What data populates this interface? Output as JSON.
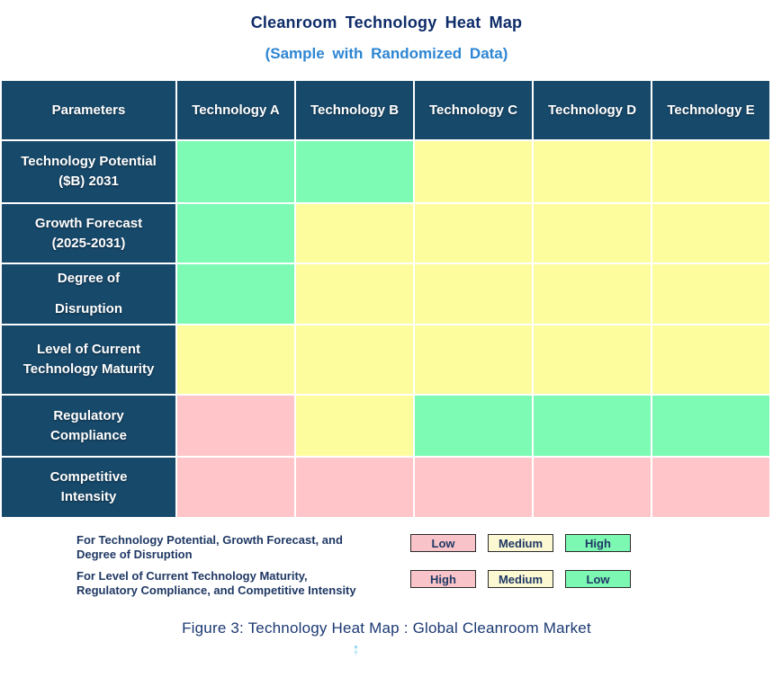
{
  "title": "Cleanroom Technology Heat Map",
  "subtitle": "(Sample with Randomized Data)",
  "caption": "Figure 3: Technology Heat Map : Global Cleanroom Market",
  "colors": {
    "header_bg": "#17496B",
    "header_text": "#FFFFFF",
    "cell_green": "#7DFBB5",
    "cell_yellow": "#FEFD9E",
    "cell_pink": "#FFC5C9",
    "legend_green": "#7DF8B3",
    "legend_yellow": "#FBF8D2",
    "legend_pink": "#F9C4C9",
    "title_text": "#0E2C69",
    "subtitle_text": "#2E86D3",
    "legend_text": "#1F3864",
    "caption_text": "#1C3973",
    "grid_line": "#FFFFFF"
  },
  "chart_data": {
    "type": "heatmap",
    "title": "Cleanroom Technology Heat Map",
    "subtitle": "(Sample with Randomized Data)",
    "corner_label": "Parameters",
    "columns": [
      "Technology A",
      "Technology B",
      "Technology C",
      "Technology D",
      "Technology E"
    ],
    "rows": [
      {
        "parameter": "Technology Potential ($B) 2031",
        "label_lines": [
          "Technology Potential",
          "($B) 2031"
        ],
        "cell_colors": [
          "green",
          "green",
          "yellow",
          "yellow",
          "yellow"
        ],
        "levels": [
          "High",
          "High",
          "Medium",
          "Medium",
          "Medium"
        ]
      },
      {
        "parameter": "Growth Forecast (2025-2031)",
        "label_lines": [
          "Growth Forecast",
          "(2025-2031)"
        ],
        "cell_colors": [
          "green",
          "yellow",
          "yellow",
          "yellow",
          "yellow"
        ],
        "levels": [
          "High",
          "Medium",
          "Medium",
          "Medium",
          "Medium"
        ]
      },
      {
        "parameter": "Degree of Disruption",
        "label_lines": [
          "Degree of",
          "Disruption"
        ],
        "cell_colors": [
          "green",
          "yellow",
          "yellow",
          "yellow",
          "yellow"
        ],
        "levels": [
          "High",
          "Medium",
          "Medium",
          "Medium",
          "Medium"
        ]
      },
      {
        "parameter": "Level of Current Technology Maturity",
        "label_lines": [
          "Level of Current",
          "Technology Maturity"
        ],
        "cell_colors": [
          "yellow",
          "yellow",
          "yellow",
          "yellow",
          "yellow"
        ],
        "levels": [
          "Medium",
          "Medium",
          "Medium",
          "Medium",
          "Medium"
        ]
      },
      {
        "parameter": "Regulatory Compliance",
        "label_lines": [
          "Regulatory",
          "Compliance"
        ],
        "cell_colors": [
          "pink",
          "yellow",
          "green",
          "green",
          "green"
        ],
        "levels": [
          "High",
          "Medium",
          "Low",
          "Low",
          "Low"
        ]
      },
      {
        "parameter": "Competitive Intensity",
        "label_lines": [
          "Competitive",
          "Intensity"
        ],
        "cell_colors": [
          "pink",
          "pink",
          "pink",
          "pink",
          "pink"
        ],
        "levels": [
          "High",
          "High",
          "High",
          "High",
          "High"
        ]
      }
    ]
  },
  "legend": {
    "scales": [
      {
        "text_lines": [
          "For Technology Potential, Growth Forecast, and",
          "Degree of Disruption"
        ],
        "items": [
          {
            "label": "Low",
            "color": "pink"
          },
          {
            "label": "Medium",
            "color": "yellow"
          },
          {
            "label": "High",
            "color": "green"
          }
        ]
      },
      {
        "text_lines": [
          "For Level of Current Technology Maturity,",
          "Regulatory Compliance, and Competitive Intensity"
        ],
        "items": [
          {
            "label": "High",
            "color": "pink"
          },
          {
            "label": "Medium",
            "color": "yellow"
          },
          {
            "label": "Low",
            "color": "green"
          }
        ]
      }
    ]
  }
}
